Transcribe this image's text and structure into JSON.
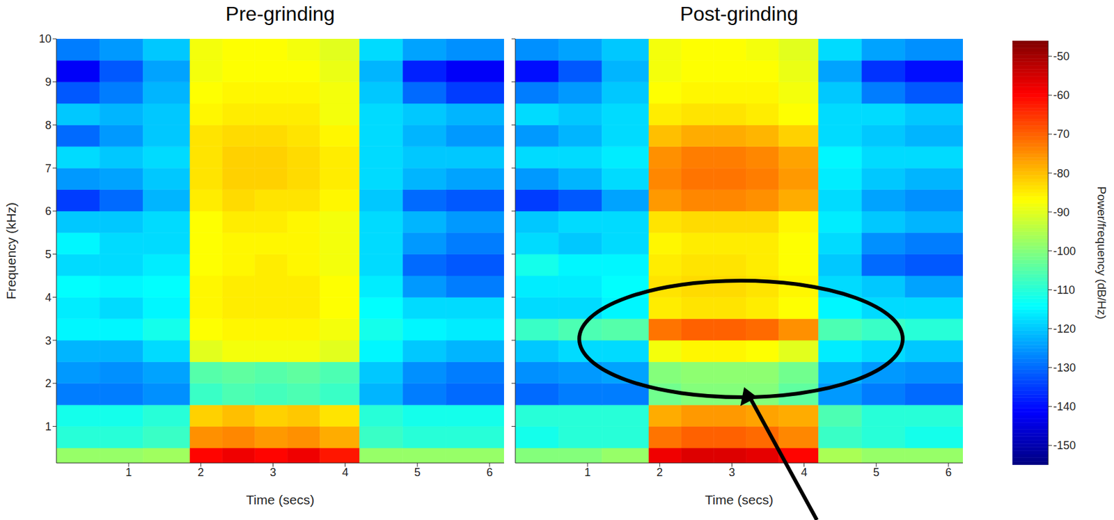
{
  "chart_data": [
    {
      "type": "heatmap",
      "title": "Pre-grinding",
      "xlabel": "Time (secs)",
      "ylabel": "Frequency (kHz)",
      "xlim": [
        0,
        6.2
      ],
      "xticks": [
        1,
        2,
        3,
        4,
        5,
        6
      ],
      "ylim": [
        0.15,
        10
      ],
      "yticks": [
        1,
        2,
        3,
        4,
        5,
        6,
        7,
        8,
        9,
        10
      ],
      "x_edges": [
        0,
        0.6,
        1.2,
        1.85,
        2.3,
        2.75,
        3.2,
        3.65,
        4.2,
        4.8,
        5.4,
        6.2
      ],
      "y_edges": [
        0.15,
        0.5,
        1,
        1.5,
        2,
        2.5,
        3,
        3.5,
        4,
        4.5,
        5,
        5.5,
        6,
        6.5,
        7,
        7.5,
        8,
        8.5,
        9,
        9.5,
        10
      ],
      "cells": [
        [
          -98,
          -98,
          -97,
          -60,
          -58,
          -60,
          -58,
          -62,
          -98,
          -98,
          -98
        ],
        [
          -110,
          -110,
          -108,
          -75,
          -74,
          -76,
          -75,
          -78,
          -108,
          -110,
          -110
        ],
        [
          -112,
          -112,
          -110,
          -82,
          -80,
          -82,
          -81,
          -84,
          -110,
          -112,
          -112
        ],
        [
          -128,
          -128,
          -126,
          -108,
          -106,
          -107,
          -106,
          -108,
          -122,
          -128,
          -130
        ],
        [
          -125,
          -126,
          -124,
          -105,
          -104,
          -105,
          -104,
          -106,
          -120,
          -126,
          -128
        ],
        [
          -122,
          -122,
          -118,
          -90,
          -88,
          -88,
          -88,
          -90,
          -115,
          -120,
          -122
        ],
        [
          -115,
          -115,
          -112,
          -87,
          -86,
          -86,
          -86,
          -88,
          -112,
          -115,
          -116
        ],
        [
          -116,
          -118,
          -115,
          -86,
          -85,
          -85,
          -85,
          -87,
          -114,
          -118,
          -118
        ],
        [
          -114,
          -115,
          -114,
          -86,
          -85,
          -85,
          -85,
          -87,
          -116,
          -125,
          -128
        ],
        [
          -118,
          -118,
          -116,
          -87,
          -86,
          -85,
          -86,
          -88,
          -118,
          -130,
          -132
        ],
        [
          -115,
          -118,
          -118,
          -87,
          -86,
          -86,
          -86,
          -88,
          -118,
          -125,
          -128
        ],
        [
          -120,
          -120,
          -118,
          -87,
          -85,
          -85,
          -86,
          -88,
          -118,
          -122,
          -125
        ],
        [
          -135,
          -130,
          -122,
          -85,
          -83,
          -84,
          -84,
          -86,
          -120,
          -130,
          -132
        ],
        [
          -125,
          -124,
          -120,
          -84,
          -82,
          -82,
          -83,
          -85,
          -118,
          -122,
          -124
        ],
        [
          -118,
          -120,
          -118,
          -84,
          -82,
          -82,
          -83,
          -85,
          -118,
          -120,
          -120
        ],
        [
          -130,
          -125,
          -120,
          -84,
          -83,
          -83,
          -84,
          -86,
          -118,
          -122,
          -125
        ],
        [
          -120,
          -122,
          -120,
          -86,
          -85,
          -85,
          -85,
          -88,
          -118,
          -120,
          -122
        ],
        [
          -132,
          -128,
          -122,
          -87,
          -86,
          -86,
          -86,
          -88,
          -120,
          -130,
          -135
        ],
        [
          -142,
          -132,
          -124,
          -88,
          -87,
          -87,
          -87,
          -89,
          -122,
          -138,
          -142
        ],
        [
          -128,
          -125,
          -120,
          -88,
          -87,
          -87,
          -88,
          -90,
          -118,
          -124,
          -126
        ]
      ]
    },
    {
      "type": "heatmap",
      "title": "Post-grinding",
      "xlabel": "Time (secs)",
      "tick_labels": "x",
      "xlim": [
        0,
        6.2
      ],
      "xticks": [
        1,
        2,
        3,
        4,
        5,
        6
      ],
      "ylim": [
        0.15,
        10
      ],
      "yticks": [
        1,
        2,
        3,
        4,
        5,
        6,
        7,
        8,
        9,
        10
      ],
      "x_edges": [
        0,
        0.6,
        1.2,
        1.85,
        2.3,
        2.75,
        3.2,
        3.65,
        4.2,
        4.8,
        5.4,
        6.2
      ],
      "y_edges": [
        0.15,
        0.5,
        1,
        1.5,
        2,
        2.5,
        3,
        3.5,
        4,
        4.5,
        5,
        5.5,
        6,
        6.5,
        7,
        7.5,
        8,
        8.5,
        9,
        9.5,
        10
      ],
      "cells": [
        [
          -100,
          -100,
          -98,
          -58,
          -56,
          -56,
          -57,
          -60,
          -96,
          -98,
          -98
        ],
        [
          -112,
          -110,
          -110,
          -72,
          -70,
          -70,
          -71,
          -74,
          -108,
          -110,
          -112
        ],
        [
          -110,
          -110,
          -110,
          -78,
          -76,
          -76,
          -77,
          -78,
          -106,
          -110,
          -110
        ],
        [
          -130,
          -128,
          -128,
          -102,
          -100,
          -100,
          -100,
          -104,
          -125,
          -128,
          -130
        ],
        [
          -126,
          -125,
          -124,
          -100,
          -99,
          -99,
          -99,
          -102,
          -122,
          -125,
          -126
        ],
        [
          -120,
          -118,
          -118,
          -88,
          -86,
          -86,
          -87,
          -90,
          -116,
          -118,
          -120
        ],
        [
          -108,
          -106,
          -105,
          -72,
          -70,
          -70,
          -71,
          -75,
          -106,
          -108,
          -110
        ],
        [
          -118,
          -118,
          -115,
          -85,
          -84,
          -84,
          -85,
          -87,
          -115,
          -118,
          -118
        ],
        [
          -116,
          -116,
          -114,
          -84,
          -83,
          -83,
          -84,
          -86,
          -118,
          -120,
          -124
        ],
        [
          -112,
          -115,
          -115,
          -85,
          -84,
          -84,
          -85,
          -87,
          -120,
          -130,
          -132
        ],
        [
          -118,
          -120,
          -118,
          -86,
          -85,
          -85,
          -85,
          -87,
          -118,
          -126,
          -128
        ],
        [
          -120,
          -118,
          -118,
          -84,
          -83,
          -83,
          -83,
          -86,
          -116,
          -120,
          -122
        ],
        [
          -135,
          -132,
          -124,
          -76,
          -74,
          -74,
          -75,
          -78,
          -118,
          -124,
          -126
        ],
        [
          -125,
          -122,
          -118,
          -74,
          -72,
          -72,
          -73,
          -76,
          -116,
          -120,
          -122
        ],
        [
          -118,
          -118,
          -116,
          -75,
          -73,
          -73,
          -74,
          -77,
          -115,
          -118,
          -118
        ],
        [
          -125,
          -122,
          -118,
          -80,
          -78,
          -78,
          -79,
          -82,
          -118,
          -120,
          -122
        ],
        [
          -118,
          -120,
          -118,
          -85,
          -84,
          -84,
          -85,
          -87,
          -118,
          -118,
          -120
        ],
        [
          -128,
          -125,
          -120,
          -87,
          -86,
          -86,
          -86,
          -88,
          -120,
          -128,
          -132
        ],
        [
          -140,
          -132,
          -122,
          -88,
          -87,
          -87,
          -87,
          -89,
          -124,
          -136,
          -140
        ],
        [
          -126,
          -124,
          -120,
          -88,
          -87,
          -87,
          -88,
          -90,
          -118,
          -124,
          -126
        ]
      ],
      "colorbar_lim": [
        -155,
        -46
      ],
      "colorbar_ticks": [
        -150,
        -140,
        -130,
        -120,
        -110,
        -100,
        -90,
        -80,
        -70,
        -60,
        -50
      ],
      "colorbar_label": "Power/frequency (dB/Hz)"
    }
  ]
}
